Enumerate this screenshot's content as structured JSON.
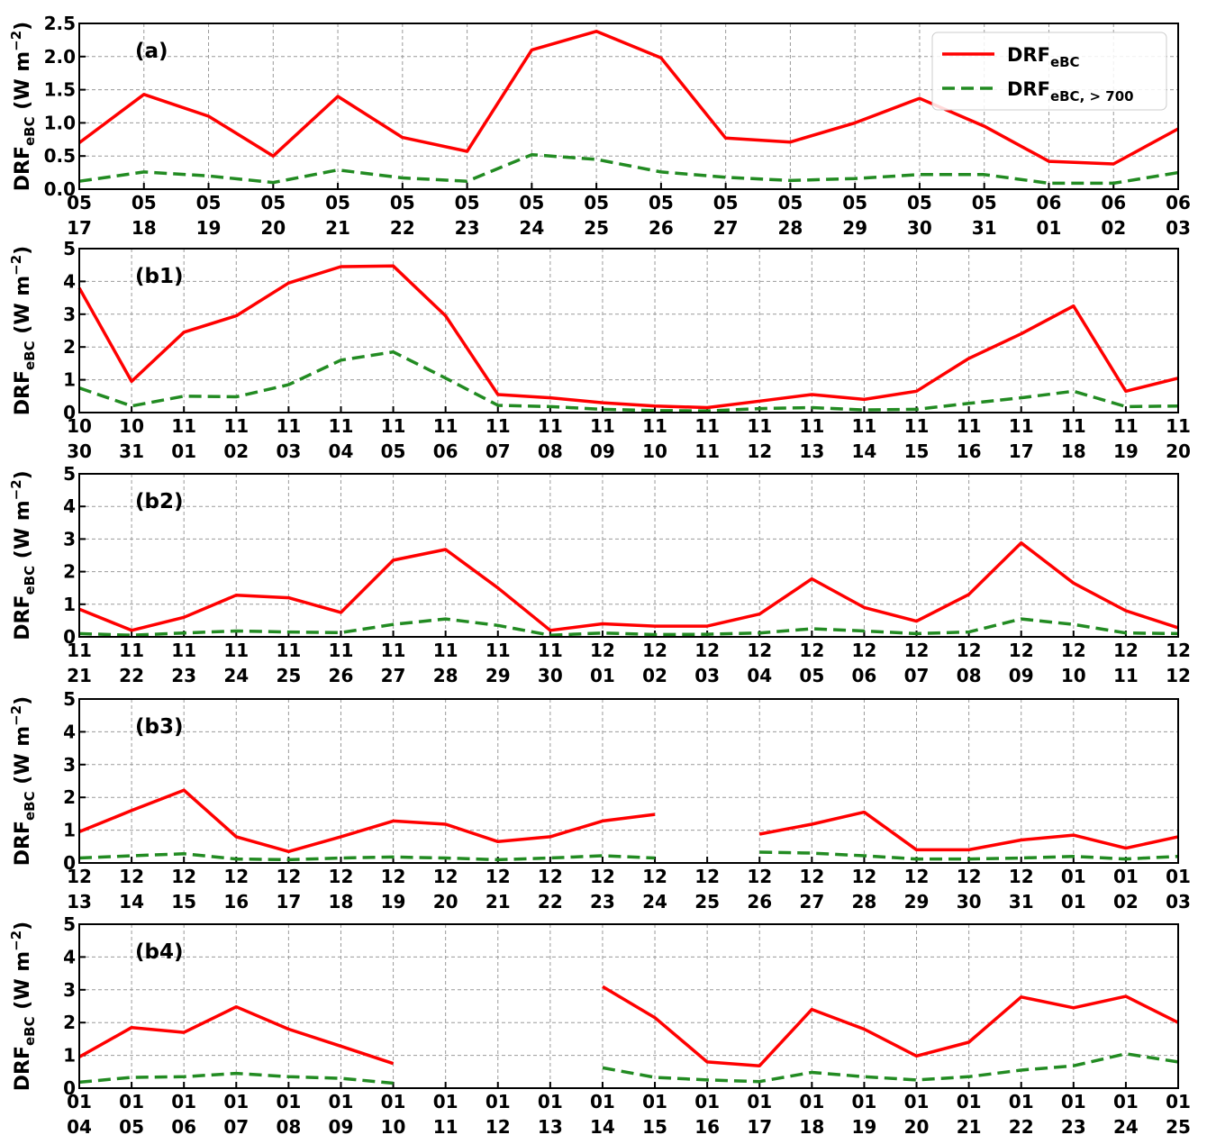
{
  "legend": {
    "items": [
      {
        "name": "DRF",
        "sub": "eBC",
        "color": "#ff0000",
        "dash": "solid"
      },
      {
        "name": "DRF",
        "sub": "eBC, > 700",
        "color": "#228B22",
        "dash": "dashed"
      }
    ]
  },
  "ylabel": {
    "main": "DRF",
    "sub": "eBC",
    "unit": " (W m",
    "exp": "−2",
    "close": ")"
  },
  "chart_data": [
    {
      "type": "line",
      "label": "(a)",
      "ylim": [
        0,
        2.5
      ],
      "yticks": [
        "0.0",
        "0.5",
        "1.0",
        "1.5",
        "2.0",
        "2.5"
      ],
      "x_month": [
        "05",
        "05",
        "05",
        "05",
        "05",
        "05",
        "05",
        "05",
        "05",
        "05",
        "05",
        "05",
        "05",
        "05",
        "05",
        "06",
        "06",
        "06"
      ],
      "x_day": [
        "17",
        "18",
        "19",
        "20",
        "21",
        "22",
        "23",
        "24",
        "25",
        "26",
        "27",
        "28",
        "29",
        "30",
        "31",
        "01",
        "02",
        "03"
      ],
      "series": [
        {
          "values": [
            0.7,
            1.43,
            1.1,
            0.5,
            1.4,
            0.78,
            0.57,
            2.1,
            2.38,
            1.98,
            0.77,
            0.71,
            1.0,
            1.37,
            0.95,
            0.42,
            0.38,
            0.91
          ]
        },
        {
          "values": [
            0.12,
            0.26,
            0.2,
            0.1,
            0.29,
            0.17,
            0.12,
            0.52,
            0.45,
            0.26,
            0.18,
            0.13,
            0.16,
            0.22,
            0.22,
            0.09,
            0.09,
            0.25
          ]
        }
      ]
    },
    {
      "type": "line",
      "label": "(b1)",
      "ylim": [
        0,
        5
      ],
      "yticks": [
        "0",
        "1",
        "2",
        "3",
        "4",
        "5"
      ],
      "x_month": [
        "10",
        "10",
        "11",
        "11",
        "11",
        "11",
        "11",
        "11",
        "11",
        "11",
        "11",
        "11",
        "11",
        "11",
        "11",
        "11",
        "11",
        "11",
        "11",
        "11",
        "11",
        "11"
      ],
      "x_day": [
        "30",
        "31",
        "01",
        "02",
        "03",
        "04",
        "05",
        "06",
        "07",
        "08",
        "09",
        "10",
        "11",
        "12",
        "13",
        "14",
        "15",
        "16",
        "17",
        "18",
        "19",
        "20"
      ],
      "series": [
        {
          "values": [
            3.8,
            0.95,
            2.45,
            2.95,
            3.95,
            4.45,
            4.47,
            2.95,
            0.55,
            0.45,
            0.3,
            0.2,
            0.15,
            0.35,
            0.55,
            0.4,
            0.65,
            1.65,
            2.4,
            3.25,
            0.65,
            1.05
          ]
        },
        {
          "values": [
            0.75,
            0.2,
            0.5,
            0.48,
            0.85,
            1.6,
            1.85,
            1.05,
            0.22,
            0.18,
            0.1,
            0.06,
            0.05,
            0.12,
            0.15,
            0.08,
            0.1,
            0.28,
            0.45,
            0.65,
            0.18,
            0.2
          ]
        }
      ]
    },
    {
      "type": "line",
      "label": "(b2)",
      "ylim": [
        0,
        5
      ],
      "yticks": [
        "0",
        "1",
        "2",
        "3",
        "4",
        "5"
      ],
      "x_month": [
        "11",
        "11",
        "11",
        "11",
        "11",
        "11",
        "11",
        "11",
        "11",
        "11",
        "12",
        "12",
        "12",
        "12",
        "12",
        "12",
        "12",
        "12",
        "12",
        "12",
        "12",
        "12"
      ],
      "x_day": [
        "21",
        "22",
        "23",
        "24",
        "25",
        "26",
        "27",
        "28",
        "29",
        "30",
        "01",
        "02",
        "03",
        "04",
        "05",
        "06",
        "07",
        "08",
        "09",
        "10",
        "11",
        "12"
      ],
      "series": [
        {
          "values": [
            0.85,
            0.2,
            0.6,
            1.28,
            1.2,
            0.75,
            2.35,
            2.68,
            1.5,
            0.2,
            0.4,
            0.33,
            0.33,
            0.7,
            1.78,
            0.9,
            0.48,
            1.3,
            2.88,
            1.65,
            0.8,
            0.28
          ]
        },
        {
          "values": [
            0.1,
            0.05,
            0.12,
            0.18,
            0.15,
            0.13,
            0.38,
            0.55,
            0.35,
            0.05,
            0.12,
            0.07,
            0.08,
            0.12,
            0.25,
            0.18,
            0.1,
            0.15,
            0.55,
            0.38,
            0.12,
            0.1
          ]
        }
      ]
    },
    {
      "type": "line",
      "label": "(b3)",
      "ylim": [
        0,
        5
      ],
      "yticks": [
        "0",
        "1",
        "2",
        "3",
        "4",
        "5"
      ],
      "x_month": [
        "12",
        "12",
        "12",
        "12",
        "12",
        "12",
        "12",
        "12",
        "12",
        "12",
        "12",
        "12",
        "12",
        "12",
        "12",
        "12",
        "12",
        "12",
        "12",
        "01",
        "01",
        "01"
      ],
      "x_day": [
        "13",
        "14",
        "15",
        "16",
        "17",
        "18",
        "19",
        "20",
        "21",
        "22",
        "23",
        "24",
        "25",
        "26",
        "27",
        "28",
        "29",
        "30",
        "31",
        "01",
        "02",
        "03"
      ],
      "series": [
        {
          "values": [
            0.95,
            1.6,
            2.22,
            0.8,
            0.35,
            0.8,
            1.28,
            1.18,
            0.65,
            0.8,
            1.28,
            1.48,
            null,
            0.88,
            1.18,
            1.55,
            0.4,
            0.4,
            0.7,
            0.85,
            0.45,
            0.8
          ]
        },
        {
          "values": [
            0.15,
            0.22,
            0.28,
            0.12,
            0.1,
            0.15,
            0.18,
            0.15,
            0.1,
            0.15,
            0.22,
            0.15,
            null,
            0.33,
            0.3,
            0.22,
            0.12,
            0.12,
            0.15,
            0.2,
            0.12,
            0.2
          ]
        }
      ]
    },
    {
      "type": "line",
      "label": "(b4)",
      "ylim": [
        0,
        5
      ],
      "yticks": [
        "0",
        "1",
        "2",
        "3",
        "4",
        "5"
      ],
      "x_month": [
        "01",
        "01",
        "01",
        "01",
        "01",
        "01",
        "01",
        "01",
        "01",
        "01",
        "01",
        "01",
        "01",
        "01",
        "01",
        "01",
        "01",
        "01",
        "01",
        "01",
        "01",
        "01"
      ],
      "x_day": [
        "04",
        "05",
        "06",
        "07",
        "08",
        "09",
        "10",
        "11",
        "12",
        "13",
        "14",
        "15",
        "16",
        "17",
        "18",
        "19",
        "20",
        "21",
        "22",
        "23",
        "24",
        "25"
      ],
      "series": [
        {
          "values": [
            0.95,
            1.85,
            1.7,
            2.48,
            1.8,
            1.28,
            0.75,
            null,
            null,
            null,
            3.1,
            2.15,
            0.8,
            0.68,
            2.4,
            1.8,
            0.98,
            1.4,
            2.78,
            2.45,
            2.8,
            2.0
          ]
        },
        {
          "values": [
            0.18,
            0.33,
            0.35,
            0.45,
            0.35,
            0.3,
            0.15,
            null,
            null,
            null,
            0.62,
            0.33,
            0.25,
            0.2,
            0.48,
            0.35,
            0.25,
            0.35,
            0.55,
            0.68,
            1.05,
            0.8
          ]
        }
      ]
    }
  ]
}
